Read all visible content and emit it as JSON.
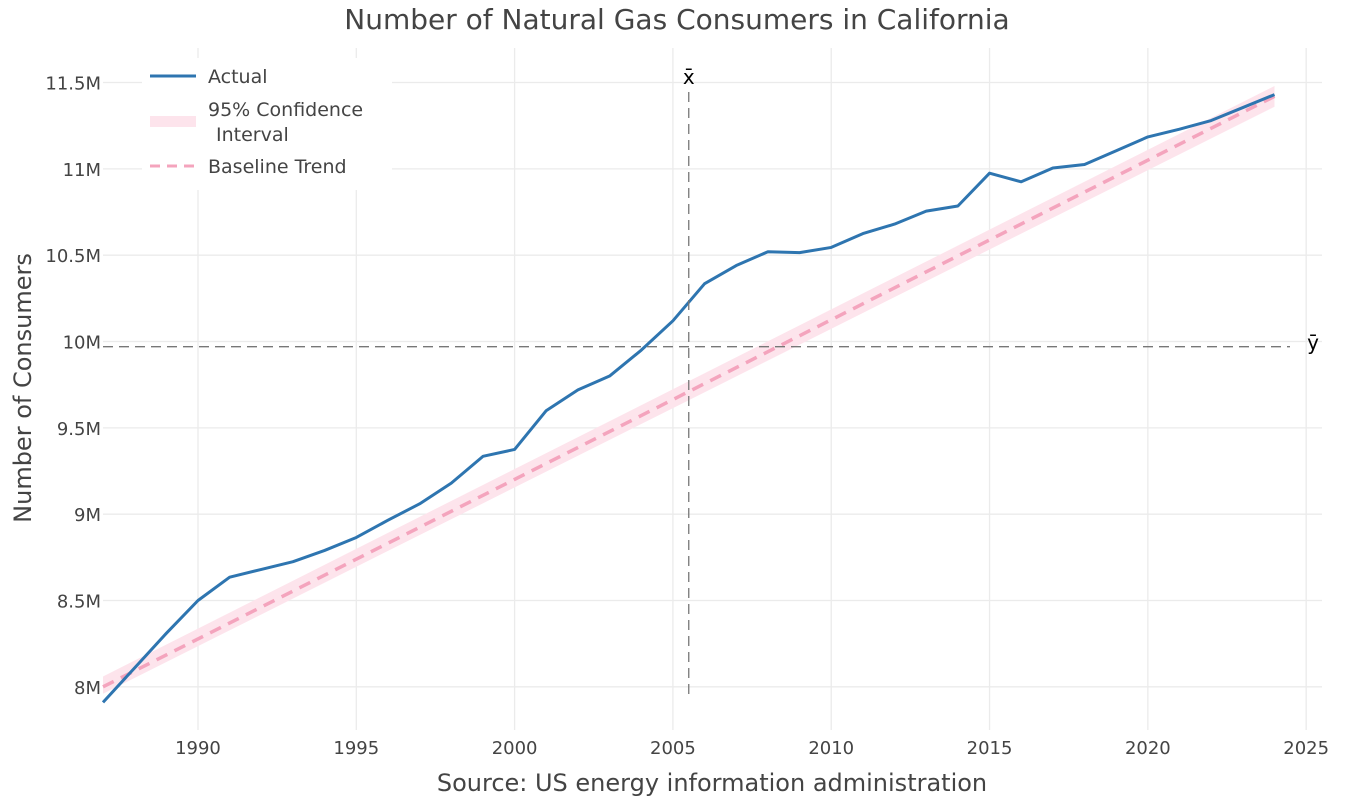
{
  "chart_data": {
    "type": "line",
    "title": "Number of Natural Gas Consumers in California",
    "xlabel": "Source: US energy information administration",
    "ylabel": "Number of Consumers",
    "xlim": [
      1987,
      2025.5
    ],
    "ylim": [
      7750000,
      11700000
    ],
    "x_ticks": [
      {
        "value": 1990,
        "label": "1990"
      },
      {
        "value": 1995,
        "label": "1995"
      },
      {
        "value": 2000,
        "label": "2000"
      },
      {
        "value": 2005,
        "label": "2005"
      },
      {
        "value": 2010,
        "label": "2010"
      },
      {
        "value": 2015,
        "label": "2015"
      },
      {
        "value": 2020,
        "label": "2020"
      },
      {
        "value": 2025,
        "label": "2025"
      }
    ],
    "y_ticks": [
      {
        "value": 8000000,
        "label": "8M"
      },
      {
        "value": 8500000,
        "label": "8.5M"
      },
      {
        "value": 9000000,
        "label": "9M"
      },
      {
        "value": 9500000,
        "label": "9.5M"
      },
      {
        "value": 10000000,
        "label": "10M"
      },
      {
        "value": 10500000,
        "label": "10.5M"
      },
      {
        "value": 11000000,
        "label": "11M"
      },
      {
        "value": 11500000,
        "label": "11.5M"
      }
    ],
    "grid": true,
    "legend_position": "top-left",
    "colors": {
      "actual": "#2e75b0",
      "trend": "#f4a4bd",
      "band": "#fde4ec",
      "mean_line": "#777777"
    },
    "series": [
      {
        "name": "Actual",
        "style": "solid",
        "x": [
          1987,
          1988,
          1989,
          1990,
          1991,
          1992,
          1993,
          1994,
          1995,
          1996,
          1997,
          1998,
          1999,
          2000,
          2001,
          2002,
          2003,
          2004,
          2005,
          2006,
          2007,
          2008,
          2009,
          2010,
          2011,
          2012,
          2013,
          2014,
          2015,
          2016,
          2017,
          2018,
          2019,
          2020,
          2021,
          2022,
          2023,
          2024
        ],
        "values": [
          7910000,
          8110000,
          8310000,
          8500000,
          8635000,
          8680000,
          8725000,
          8790000,
          8865000,
          8965000,
          9060000,
          9180000,
          9335000,
          9375000,
          9600000,
          9720000,
          9800000,
          9950000,
          10120000,
          10335000,
          10440000,
          10520000,
          10515000,
          10545000,
          10625000,
          10680000,
          10755000,
          10785000,
          10975000,
          10925000,
          11005000,
          11025000,
          11105000,
          11185000,
          11230000,
          11280000,
          11355000,
          11430000
        ]
      },
      {
        "name": "95% Confidence Interval",
        "style": "band",
        "x": [
          1987,
          2024
        ],
        "lower": [
          7960000,
          11360000
        ],
        "upper": [
          8060000,
          11480000
        ]
      },
      {
        "name": "Baseline Trend",
        "style": "dashed",
        "x": [
          1987,
          2024
        ],
        "values": [
          8000000,
          11420000
        ]
      }
    ],
    "legend": {
      "actual": "Actual",
      "ci_line1": "95% Confidence",
      "ci_line2": "Interval",
      "trend": "Baseline Trend"
    },
    "annotations": {
      "x_mean": {
        "label": "x̄",
        "value": 2005.5
      },
      "y_mean": {
        "label": "ȳ",
        "value": 9970000
      }
    }
  }
}
